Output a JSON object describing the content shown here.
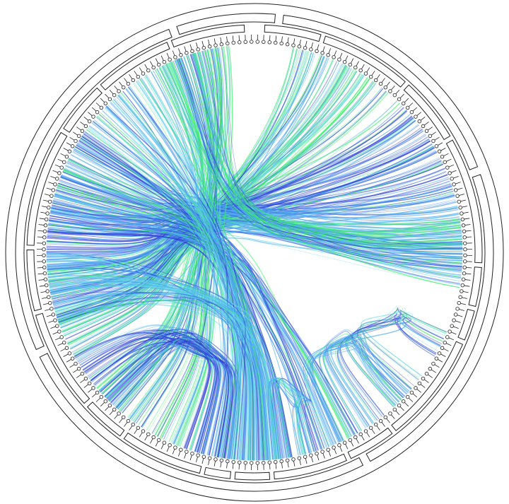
{
  "diagram": {
    "type": "hierarchical edge bundling (circular)",
    "palette": {
      "edge_blue": "#2f3fd6",
      "edge_lightblue": "#4aa6f0",
      "edge_cyan": "#5fd6e6",
      "edge_green": "#3cf06a",
      "outline": "#222222",
      "background": "#ffffff"
    },
    "leaf_count": 220,
    "inner_groups": 19,
    "outer_groups": 5,
    "labels_visible": false
  }
}
